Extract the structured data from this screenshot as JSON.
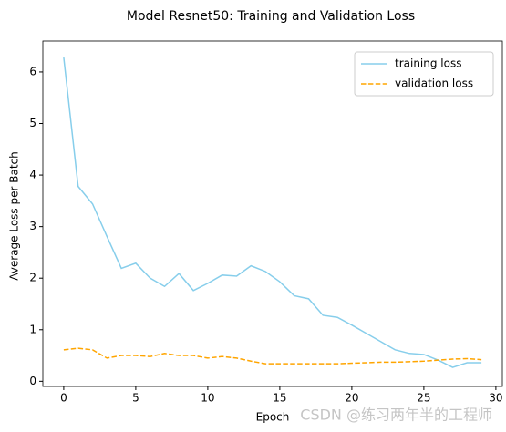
{
  "chart_data": {
    "type": "line",
    "title": "Model Resnet50: Training and Validation Loss",
    "x_label": "Epoch",
    "y_label": "Average Loss per Batch",
    "x": [
      0,
      1,
      2,
      3,
      4,
      5,
      6,
      7,
      8,
      9,
      10,
      11,
      12,
      13,
      14,
      15,
      16,
      17,
      18,
      19,
      20,
      21,
      22,
      23,
      24,
      25,
      26,
      27,
      28,
      29
    ],
    "series": [
      {
        "name": "training loss",
        "color": "#87ceeb",
        "dash": "solid",
        "values": [
          6.28,
          3.78,
          3.44,
          2.81,
          2.19,
          2.29,
          2.0,
          1.84,
          2.09,
          1.76,
          1.9,
          2.06,
          2.04,
          2.24,
          2.13,
          1.93,
          1.66,
          1.6,
          1.28,
          1.24,
          1.09,
          0.93,
          0.77,
          0.61,
          0.54,
          0.52,
          0.41,
          0.27,
          0.36,
          0.36
        ]
      },
      {
        "name": "validation loss",
        "color": "#ffa500",
        "dash": "dashed",
        "values": [
          0.61,
          0.64,
          0.61,
          0.45,
          0.5,
          0.5,
          0.48,
          0.54,
          0.5,
          0.5,
          0.45,
          0.48,
          0.45,
          0.39,
          0.34,
          0.34,
          0.34,
          0.34,
          0.34,
          0.34,
          0.35,
          0.36,
          0.37,
          0.37,
          0.38,
          0.39,
          0.41,
          0.43,
          0.44,
          0.42
        ]
      }
    ],
    "xlim": [
      -1.45,
      30.45
    ],
    "xticks": [
      0,
      5,
      10,
      15,
      20,
      25,
      30
    ],
    "ylim": [
      -0.1,
      6.6
    ],
    "yticks": [
      0,
      1,
      2,
      3,
      4,
      5,
      6
    ],
    "legend": "upper right",
    "grid": false,
    "watermark": "CSDN @练习两年半的工程师"
  }
}
